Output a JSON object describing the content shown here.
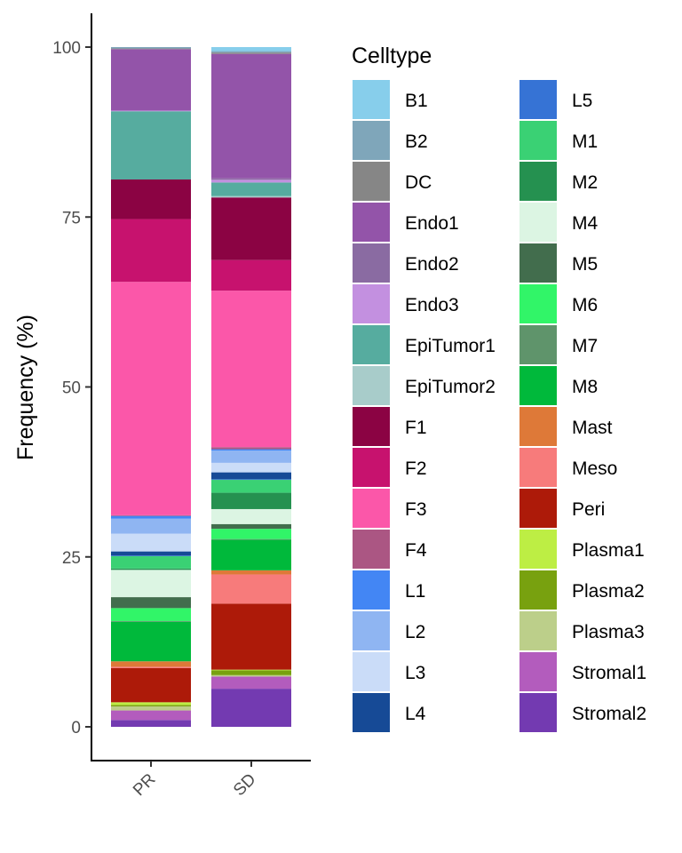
{
  "chart_data": {
    "type": "bar",
    "stacked": true,
    "title": "",
    "xlabel": "",
    "ylabel": "Frequency (%)",
    "ylim": [
      0,
      100
    ],
    "yticks": [
      0,
      25,
      50,
      75,
      100
    ],
    "categories": [
      "PR",
      "SD"
    ],
    "grid": false,
    "legend": {
      "title": "Celltype",
      "position": "right",
      "columns": 2
    },
    "series": [
      {
        "name": "B1",
        "color": "#87CEEB",
        "values": [
          0.0,
          0.6
        ]
      },
      {
        "name": "B2",
        "color": "#7FA6BA",
        "values": [
          0.2,
          0.2
        ]
      },
      {
        "name": "DC",
        "color": "#868686",
        "values": [
          0.1,
          0.2
        ]
      },
      {
        "name": "Endo1",
        "color": "#9354A9",
        "values": [
          9.0,
          18.3
        ]
      },
      {
        "name": "Endo2",
        "color": "#8A6BA2",
        "values": [
          0.0,
          0.2
        ]
      },
      {
        "name": "Endo3",
        "color": "#C390E0",
        "values": [
          0.1,
          0.4
        ]
      },
      {
        "name": "EpiTumor1",
        "color": "#56AC9F",
        "values": [
          10.0,
          2.0
        ]
      },
      {
        "name": "EpiTumor2",
        "color": "#A8CCCA",
        "values": [
          0.0,
          0.2
        ]
      },
      {
        "name": "F1",
        "color": "#8B0343",
        "values": [
          5.8,
          9.2
        ]
      },
      {
        "name": "F2",
        "color": "#C7126E",
        "values": [
          9.2,
          4.5
        ]
      },
      {
        "name": "F3",
        "color": "#FB57A9",
        "values": [
          34.2,
          23.0
        ]
      },
      {
        "name": "F4",
        "color": "#AB5683",
        "values": [
          0.1,
          0.3
        ]
      },
      {
        "name": "L1",
        "color": "#4386F4",
        "values": [
          0.4,
          0.2
        ]
      },
      {
        "name": "L2",
        "color": "#8FB5F2",
        "values": [
          2.2,
          1.8
        ]
      },
      {
        "name": "L3",
        "color": "#CADCF8",
        "values": [
          2.6,
          1.4
        ]
      },
      {
        "name": "L4",
        "color": "#164A96",
        "values": [
          0.6,
          1.0
        ]
      },
      {
        "name": "L5",
        "color": "#3673D5",
        "values": [
          0.1,
          0.1
        ]
      },
      {
        "name": "M1",
        "color": "#3AD174",
        "values": [
          1.8,
          1.9
        ]
      },
      {
        "name": "M2",
        "color": "#259150",
        "values": [
          0.2,
          2.4
        ]
      },
      {
        "name": "M4",
        "color": "#DCF5E3",
        "values": [
          4.0,
          2.2
        ]
      },
      {
        "name": "M5",
        "color": "#426D4D",
        "values": [
          1.6,
          0.7
        ]
      },
      {
        "name": "M6",
        "color": "#31F568",
        "values": [
          1.9,
          1.5
        ]
      },
      {
        "name": "M7",
        "color": "#5F946B",
        "values": [
          0.1,
          0.1
        ]
      },
      {
        "name": "M8",
        "color": "#00B93B",
        "values": [
          5.8,
          4.5
        ]
      },
      {
        "name": "Mast",
        "color": "#DE7938",
        "values": [
          0.8,
          0.6
        ]
      },
      {
        "name": "Meso",
        "color": "#F77B7B",
        "values": [
          0.2,
          4.3
        ]
      },
      {
        "name": "Peri",
        "color": "#AD1A09",
        "values": [
          5.0,
          9.7
        ]
      },
      {
        "name": "Plasma1",
        "color": "#BDEE44",
        "values": [
          0.4,
          0.1
        ]
      },
      {
        "name": "Plasma2",
        "color": "#78A10F",
        "values": [
          0.2,
          0.7
        ]
      },
      {
        "name": "Plasma3",
        "color": "#BCCF8A",
        "values": [
          0.6,
          0.2
        ]
      },
      {
        "name": "Stromal1",
        "color": "#B35CBD",
        "values": [
          1.4,
          1.8
        ]
      },
      {
        "name": "Stromal2",
        "color": "#733AB1",
        "values": [
          1.0,
          5.6
        ]
      }
    ]
  }
}
